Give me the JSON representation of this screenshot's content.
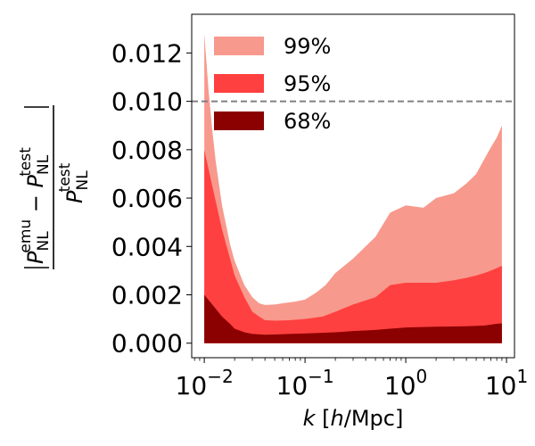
{
  "chart_data": {
    "type": "area",
    "xscale": "log",
    "xlim": [
      0.0075,
      12.0
    ],
    "ylim": [
      -0.0006,
      0.0136
    ],
    "xlabel": {
      "var": "k",
      "text": " [",
      "unit_var": "h",
      "unit": "/Mpc]"
    },
    "ylabel": {
      "num_var": "P",
      "num_sub": "NL",
      "num_sup": "emu",
      "minus": " − ",
      "test_var": "P",
      "test_sub": "NL",
      "test_sup": "test"
    },
    "x_ticks": [
      {
        "value": 0.01,
        "base": "10",
        "exp": "−2"
      },
      {
        "value": 0.1,
        "base": "10",
        "exp": "−1"
      },
      {
        "value": 1,
        "base": "10",
        "exp": "0"
      },
      {
        "value": 10,
        "base": "10",
        "exp": "1"
      }
    ],
    "y_ticks": [
      {
        "value": 0.0,
        "label": "0.000"
      },
      {
        "value": 0.002,
        "label": "0.002"
      },
      {
        "value": 0.004,
        "label": "0.004"
      },
      {
        "value": 0.006,
        "label": "0.006"
      },
      {
        "value": 0.008,
        "label": "0.008"
      },
      {
        "value": 0.01,
        "label": "0.010"
      },
      {
        "value": 0.012,
        "label": "0.012"
      }
    ],
    "hline": {
      "y": 0.01,
      "style": "dashed",
      "color": "#808080"
    },
    "legend": {
      "position": "upper-left",
      "entries": [
        {
          "label": "99%",
          "color": "#f8998d"
        },
        {
          "label": "95%",
          "color": "#ff4040"
        },
        {
          "label": "68%",
          "color": "#8b0000"
        }
      ]
    },
    "series": [
      {
        "name": "99%",
        "color": "#f8998d",
        "points": [
          [
            0.01,
            0.0128
          ],
          [
            0.011,
            0.0105
          ],
          [
            0.012,
            0.0088
          ],
          [
            0.013,
            0.0075
          ],
          [
            0.015,
            0.0057
          ],
          [
            0.018,
            0.0041
          ],
          [
            0.02,
            0.0034
          ],
          [
            0.025,
            0.0024
          ],
          [
            0.03,
            0.0019
          ],
          [
            0.035,
            0.00165
          ],
          [
            0.04,
            0.00158
          ],
          [
            0.05,
            0.0016
          ],
          [
            0.06,
            0.00165
          ],
          [
            0.08,
            0.00172
          ],
          [
            0.1,
            0.0018
          ],
          [
            0.13,
            0.0021
          ],
          [
            0.16,
            0.0024
          ],
          [
            0.2,
            0.0029
          ],
          [
            0.3,
            0.0035
          ],
          [
            0.5,
            0.0044
          ],
          [
            0.7,
            0.0054
          ],
          [
            1.0,
            0.0057
          ],
          [
            1.5,
            0.0056
          ],
          [
            2.0,
            0.006
          ],
          [
            3.0,
            0.0062
          ],
          [
            4.0,
            0.0066
          ],
          [
            5.0,
            0.007
          ],
          [
            6.0,
            0.0076
          ],
          [
            7.0,
            0.0081
          ],
          [
            8.0,
            0.0085
          ],
          [
            9.0,
            0.009
          ]
        ]
      },
      {
        "name": "95%",
        "color": "#ff4040",
        "points": [
          [
            0.01,
            0.008
          ],
          [
            0.012,
            0.0065
          ],
          [
            0.015,
            0.0047
          ],
          [
            0.018,
            0.0035
          ],
          [
            0.02,
            0.0028
          ],
          [
            0.025,
            0.0019
          ],
          [
            0.03,
            0.0013
          ],
          [
            0.035,
            0.0011
          ],
          [
            0.04,
            0.00095
          ],
          [
            0.05,
            0.00093
          ],
          [
            0.07,
            0.00095
          ],
          [
            0.1,
            0.001
          ],
          [
            0.15,
            0.0011
          ],
          [
            0.2,
            0.0013
          ],
          [
            0.3,
            0.0016
          ],
          [
            0.5,
            0.0019
          ],
          [
            0.7,
            0.0024
          ],
          [
            1.0,
            0.0025
          ],
          [
            1.5,
            0.0025
          ],
          [
            2.0,
            0.0025
          ],
          [
            3.0,
            0.0026
          ],
          [
            4.0,
            0.0027
          ],
          [
            5.0,
            0.0028
          ],
          [
            6.0,
            0.0029
          ],
          [
            7.0,
            0.003
          ],
          [
            8.0,
            0.0031
          ],
          [
            9.0,
            0.0032
          ]
        ]
      },
      {
        "name": "68%",
        "color": "#8b0000",
        "points": [
          [
            0.01,
            0.002
          ],
          [
            0.012,
            0.0016
          ],
          [
            0.015,
            0.0011
          ],
          [
            0.018,
            0.0008
          ],
          [
            0.02,
            0.0006
          ],
          [
            0.025,
            0.00045
          ],
          [
            0.03,
            0.00038
          ],
          [
            0.04,
            0.00035
          ],
          [
            0.05,
            0.00036
          ],
          [
            0.07,
            0.00038
          ],
          [
            0.1,
            0.0004
          ],
          [
            0.2,
            0.00045
          ],
          [
            0.3,
            0.0005
          ],
          [
            0.5,
            0.00055
          ],
          [
            0.7,
            0.0006
          ],
          [
            1.0,
            0.00065
          ],
          [
            2.0,
            0.00068
          ],
          [
            4.0,
            0.0007
          ],
          [
            6.0,
            0.00073
          ],
          [
            8.0,
            0.0008
          ],
          [
            9.0,
            0.00082
          ]
        ]
      }
    ]
  }
}
